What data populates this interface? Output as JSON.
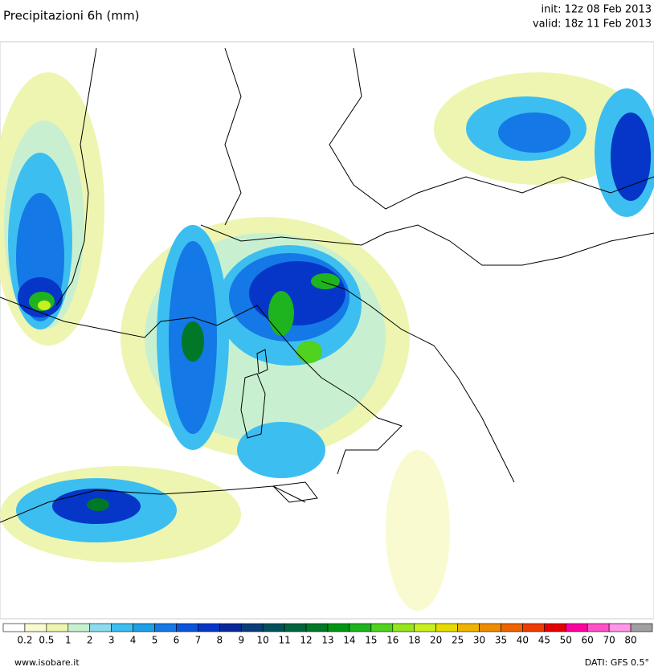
{
  "header": {
    "title": "Precipitazioni 6h (mm)",
    "init": "init: 12z 08 Feb 2013",
    "valid": "valid: 18z 11 Feb 2013"
  },
  "colorbar": {
    "labels": [
      "0.2",
      "0.5",
      "1",
      "2",
      "3",
      "4",
      "5",
      "6",
      "7",
      "8",
      "9",
      "10",
      "11",
      "12",
      "13",
      "14",
      "15",
      "16",
      "18",
      "20",
      "25",
      "30",
      "35",
      "40",
      "45",
      "50",
      "60",
      "70",
      "80"
    ],
    "colors": [
      "#ffffff",
      "#fafad0",
      "#eef5b0",
      "#c8f0d0",
      "#8cdcf0",
      "#3cbef0",
      "#1ea0e8",
      "#1478e6",
      "#0a55dc",
      "#0536c8",
      "#08289a",
      "#0a3c78",
      "#00505a",
      "#00643c",
      "#007828",
      "#009614",
      "#1eb41e",
      "#50d21e",
      "#96e61e",
      "#c8f01e",
      "#e6dc00",
      "#f0b400",
      "#f08c00",
      "#f06400",
      "#f03c00",
      "#e60000",
      "#ff00a0",
      "#ff50c8",
      "#ff96e6",
      "#a0a0a0"
    ]
  },
  "footer": {
    "site": "www.isobare.it",
    "source": "DATI: GFS 0.5°"
  }
}
